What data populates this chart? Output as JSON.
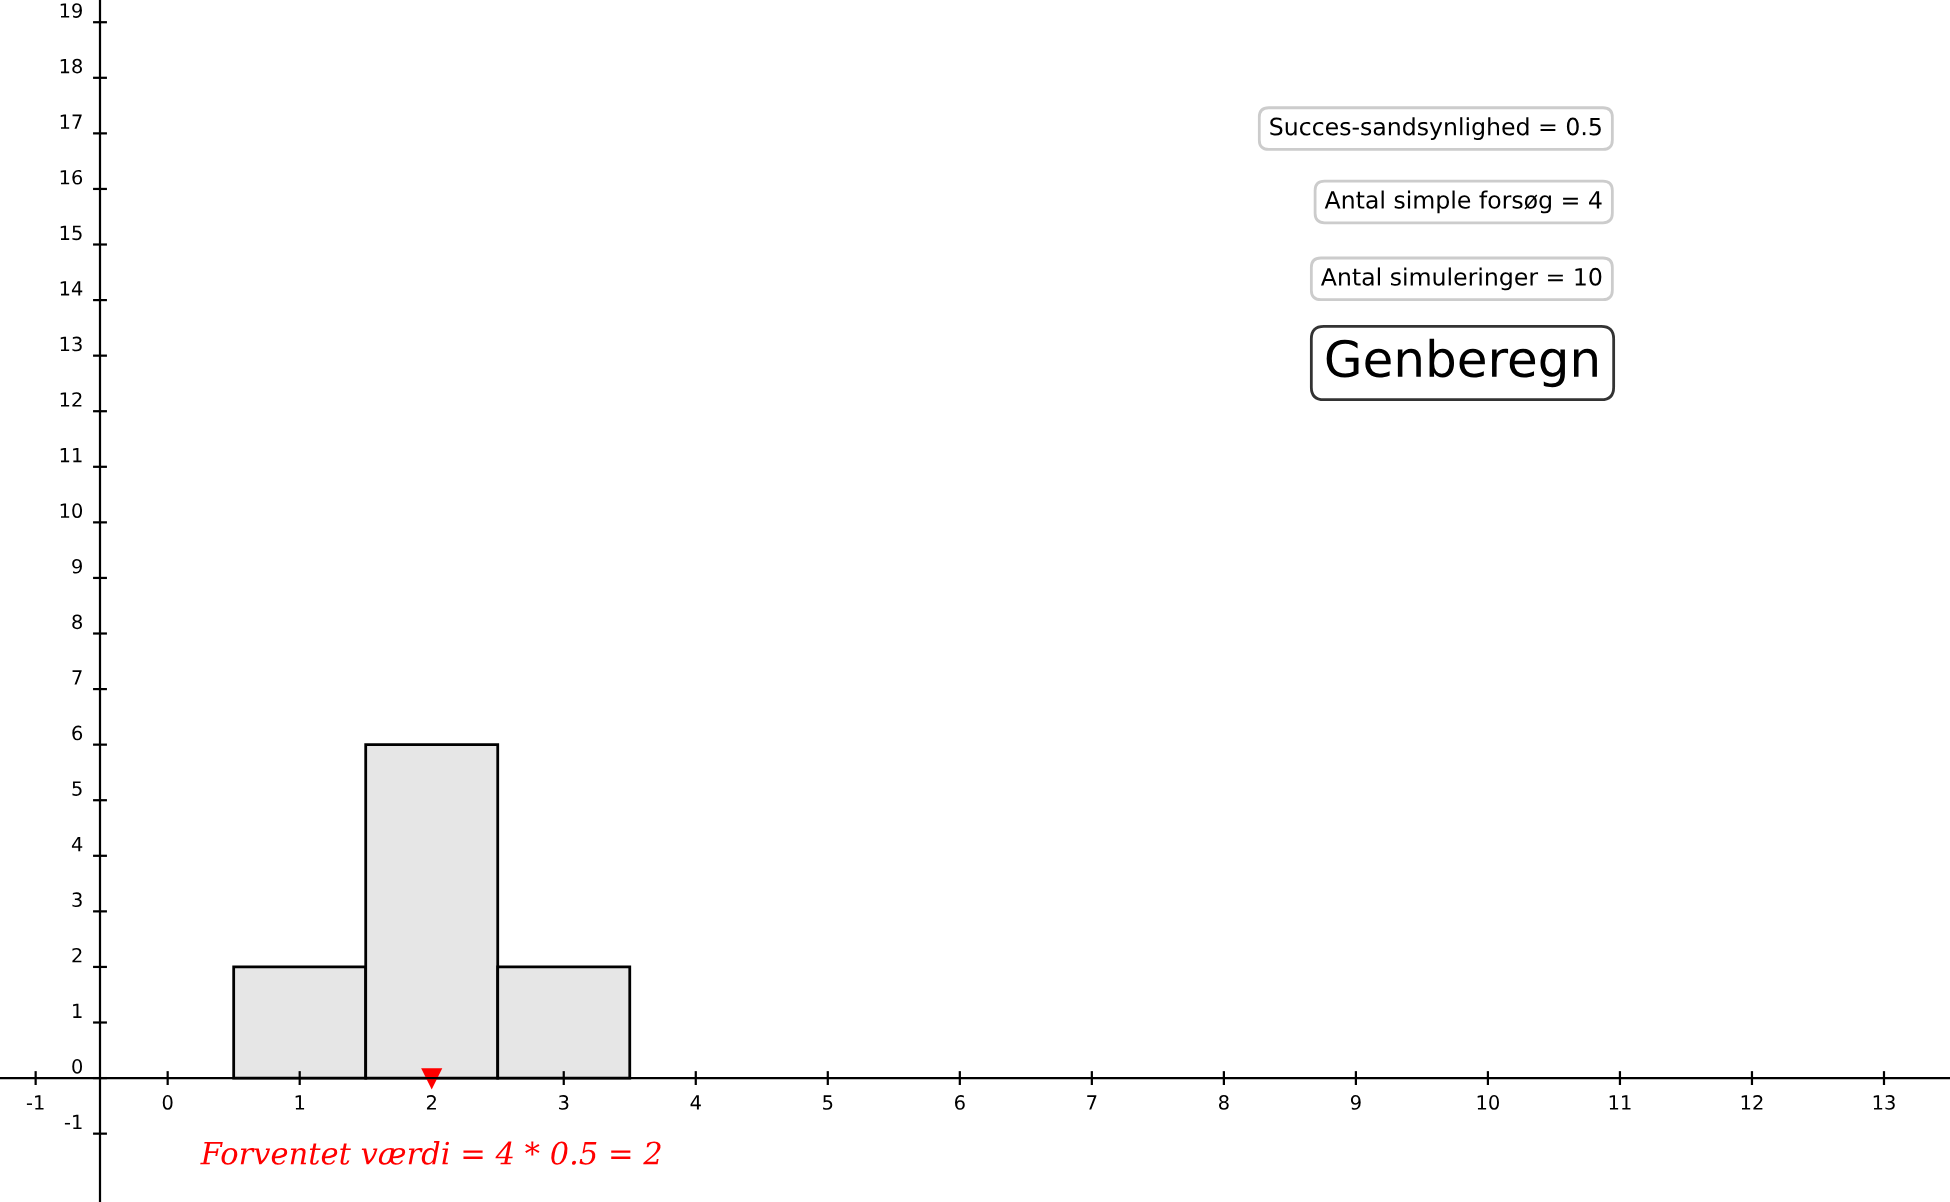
{
  "chart_data": {
    "type": "histogram",
    "bins": [
      -0.5,
      0.5,
      1.5,
      2.5,
      3.5,
      4.5
    ],
    "values": [
      0,
      2,
      6,
      2,
      0
    ],
    "color": "#e6e6e6",
    "xlim": [
      -1.27,
      13.5
    ],
    "ylim": [
      -2.23,
      19.4
    ],
    "xticks": [
      -1,
      0,
      1,
      2,
      3,
      4,
      5,
      6,
      7,
      8,
      9,
      10,
      11,
      12,
      13
    ],
    "yticks": [
      -1,
      0,
      1,
      2,
      3,
      4,
      5,
      6,
      7,
      8,
      9,
      10,
      11,
      12,
      13,
      14,
      15,
      16,
      17,
      18,
      19
    ],
    "grid": false,
    "legend": false,
    "annotations": [
      "Succes-sandsynlighed = 0.5",
      "Antal simple forsøg = 4",
      "Antal simuleringer = 10",
      "Genberegn",
      {
        "text": "Forventet værdi = 4 * 0.5 = 2",
        "x": 2,
        "y": 0
      }
    ]
  }
}
